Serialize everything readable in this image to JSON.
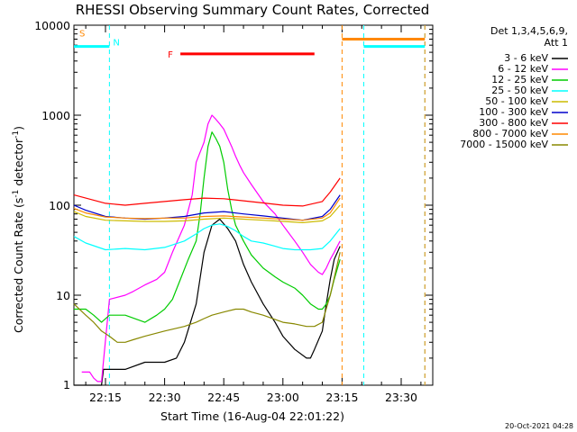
{
  "chart_data": {
    "type": "line",
    "title": "RHESSI Observing Summary Count Rates, Corrected",
    "xlabel": "Start Time (16-Aug-04 22:01:22)",
    "ylabel_main": "Corrected Count Rate (s",
    "ylabel_sup1": "-1",
    "ylabel_mid": " detector",
    "ylabel_sup2": "-1",
    "ylabel_end": ")",
    "x_unit": "minutes since 22:00",
    "xlim": [
      7,
      98
    ],
    "ylim": [
      1,
      10000
    ],
    "yscale": "log",
    "x_ticks": [
      {
        "value": 15,
        "label": "22:15"
      },
      {
        "value": 30,
        "label": "22:30"
      },
      {
        "value": 45,
        "label": "22:45"
      },
      {
        "value": 60,
        "label": "23:00"
      },
      {
        "value": 75,
        "label": "23:15"
      },
      {
        "value": 90,
        "label": "23:30"
      }
    ],
    "y_ticks": [
      {
        "value": 10,
        "label": "10"
      },
      {
        "value": 100,
        "label": "100"
      },
      {
        "value": 1000,
        "label": "1000"
      },
      {
        "value": 10000,
        "label": "10000"
      }
    ],
    "legend": {
      "placement": "right",
      "header_line1": "Det 1,3,4,5,6,9,",
      "header_line2": "Att 1"
    },
    "series": [
      {
        "name": "3 - 6 keV",
        "color": "#000000",
        "x": [
          7,
          10,
          12,
          13,
          14,
          14.5,
          20,
          25,
          30,
          33,
          35,
          38,
          40,
          42,
          44,
          46,
          48,
          50,
          52,
          55,
          58,
          60,
          63,
          66,
          67,
          68,
          70,
          71,
          72,
          73,
          74.5
        ],
        "y": [
          1,
          1,
          1,
          1,
          1,
          1.5,
          1.5,
          1.8,
          1.8,
          2,
          3,
          8,
          30,
          60,
          70,
          55,
          40,
          22,
          14,
          8,
          5,
          3.5,
          2.5,
          2,
          2,
          2.5,
          4,
          8,
          15,
          25,
          35
        ]
      },
      {
        "name": "6 - 12 keV",
        "color": "#ff00ff",
        "x": [
          9,
          11,
          12,
          13,
          14,
          16,
          20,
          22,
          25,
          28,
          30,
          32,
          35,
          37,
          38,
          40,
          41,
          42,
          43,
          44,
          45,
          46,
          47,
          48,
          49,
          50,
          52,
          55,
          58,
          60,
          63,
          65,
          67,
          69,
          70,
          71,
          72,
          73,
          74.5
        ],
        "y": [
          1.4,
          1.4,
          1.2,
          1.1,
          1.1,
          9,
          10,
          11,
          13,
          15,
          18,
          30,
          60,
          130,
          300,
          500,
          800,
          1000,
          900,
          800,
          700,
          560,
          450,
          350,
          280,
          230,
          170,
          110,
          80,
          60,
          40,
          30,
          22,
          18,
          17,
          20,
          25,
          30,
          40
        ]
      },
      {
        "name": "12 - 25 keV",
        "color": "#00cc00",
        "x": [
          7,
          10,
          12,
          14,
          16,
          20,
          25,
          28,
          30,
          32,
          34,
          36,
          38,
          39,
          40,
          41,
          42,
          43,
          44,
          45,
          46,
          47,
          48,
          50,
          52,
          55,
          58,
          60,
          63,
          65,
          67,
          69,
          70,
          71,
          72,
          73,
          74.5
        ],
        "y": [
          7,
          7,
          6,
          5,
          6,
          6,
          5,
          6,
          7,
          9,
          15,
          25,
          40,
          80,
          200,
          450,
          650,
          550,
          450,
          300,
          150,
          90,
          60,
          40,
          28,
          20,
          16,
          14,
          12,
          10,
          8,
          7,
          7,
          8,
          10,
          15,
          25
        ]
      },
      {
        "name": "25 - 50 keV",
        "color": "#00ffff",
        "x": [
          7,
          10,
          15,
          20,
          25,
          30,
          35,
          38,
          40,
          42,
          44,
          46,
          48,
          50,
          52,
          55,
          58,
          60,
          63,
          65,
          67,
          70,
          72,
          74.5
        ],
        "y": [
          45,
          38,
          32,
          33,
          32,
          34,
          40,
          48,
          55,
          60,
          62,
          58,
          52,
          45,
          40,
          38,
          35,
          33,
          32,
          32,
          32,
          33,
          40,
          55
        ]
      },
      {
        "name": "50 - 100 keV",
        "color": "#ccbb00",
        "x": [
          7,
          10,
          15,
          20,
          25,
          30,
          35,
          40,
          45,
          50,
          55,
          60,
          65,
          70,
          72,
          74.5
        ],
        "y": [
          85,
          75,
          68,
          67,
          66,
          66,
          67,
          70,
          72,
          70,
          68,
          66,
          64,
          67,
          75,
          100
        ]
      },
      {
        "name": "100 - 300 keV",
        "color": "#0000cc",
        "x": [
          7,
          10,
          15,
          20,
          25,
          30,
          35,
          40,
          45,
          50,
          55,
          60,
          65,
          70,
          72,
          74.5
        ],
        "y": [
          100,
          88,
          75,
          72,
          70,
          72,
          75,
          82,
          85,
          80,
          76,
          72,
          68,
          75,
          90,
          130
        ]
      },
      {
        "name": "300 - 800 keV",
        "color": "#ff0000",
        "x": [
          7,
          10,
          15,
          20,
          25,
          30,
          35,
          40,
          45,
          50,
          55,
          60,
          65,
          70,
          72,
          74.5
        ],
        "y": [
          130,
          120,
          105,
          100,
          105,
          110,
          115,
          120,
          118,
          112,
          106,
          100,
          98,
          110,
          140,
          200
        ]
      },
      {
        "name": "800 - 7000 keV",
        "color": "#ff8800",
        "x": [
          7,
          10,
          15,
          20,
          25,
          30,
          35,
          40,
          45,
          50,
          55,
          60,
          65,
          70,
          72,
          74.5
        ],
        "y": [
          92,
          82,
          74,
          72,
          71,
          72,
          72,
          75,
          76,
          74,
          72,
          70,
          68,
          72,
          82,
          120
        ]
      },
      {
        "name": "7000 - 15000 keV",
        "color": "#888800",
        "x": [
          7,
          10,
          12,
          14,
          16,
          18,
          20,
          22,
          25,
          30,
          35,
          38,
          40,
          42,
          45,
          48,
          50,
          52,
          55,
          60,
          63,
          66,
          68,
          70,
          72,
          74.5
        ],
        "y": [
          8,
          6,
          5,
          4,
          3.5,
          3,
          3,
          3.2,
          3.5,
          4,
          4.5,
          5,
          5.5,
          6,
          6.5,
          7,
          7,
          6.5,
          6,
          5,
          4.8,
          4.5,
          4.5,
          5,
          10,
          30
        ]
      }
    ],
    "annotations": {
      "s_label": "S",
      "n_label": "N",
      "f_label": "F",
      "s_bars": [
        {
          "x_start": 75,
          "x_end": 96,
          "value": 7000
        }
      ],
      "n_bars": [
        {
          "x_start": 7,
          "x_end": 16,
          "value": 5800
        },
        {
          "x_start": 80.5,
          "x_end": 96,
          "value": 5800
        }
      ],
      "f_bar": {
        "x_start": 34,
        "x_end": 68,
        "value": 4800
      },
      "orange_vlines": [
        75,
        96
      ],
      "cyan_vlines": [
        16,
        80.5,
        96
      ]
    },
    "grid": false
  },
  "timestamp": "20-Oct-2021 04:28"
}
